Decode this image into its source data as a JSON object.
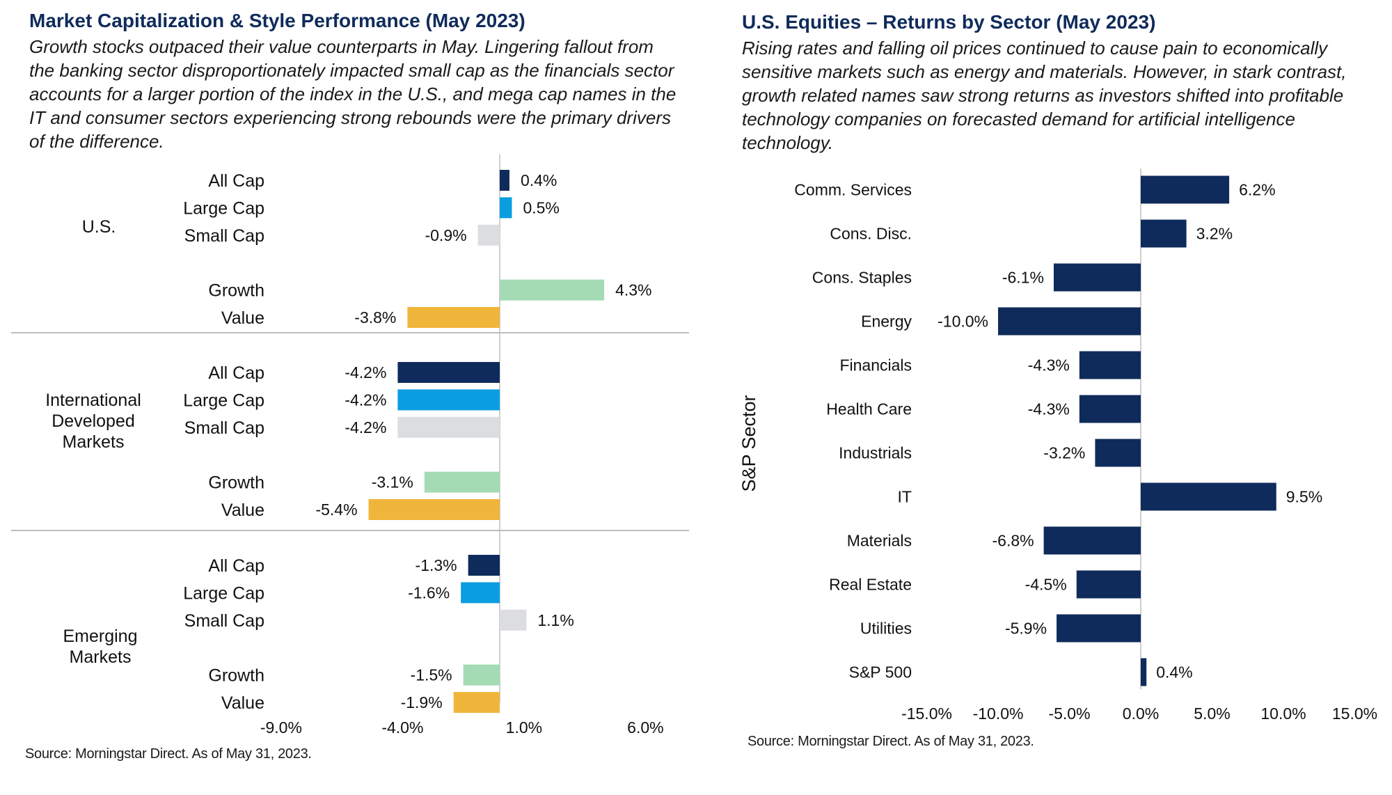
{
  "left": {
    "title": "Market Capitalization & Style Performance (May 2023)",
    "subtitle": "Growth stocks outpaced their value counterparts in May. Lingering fallout from the banking sector disproportionately impacted small cap as the financials sector accounts for a larger portion of the index in the U.S., and mega cap names in the IT and consumer sectors experiencing strong rebounds were the primary drivers of the difference.",
    "source": "Source: Morningstar Direct. As of May 31, 2023."
  },
  "right": {
    "title": "U.S. Equities – Returns by Sector (May 2023)",
    "subtitle": "Rising rates and falling oil prices continued to cause pain to economically sensitive markets such as energy and materials. However, in stark contrast, growth related names saw strong returns as investors shifted into profitable technology companies on forecasted demand for artificial intelligence technology.",
    "source": "Source: Morningstar Direct. As of May 31, 2023."
  },
  "chart_data": [
    {
      "type": "bar",
      "orientation": "horizontal",
      "grouped_by": "region",
      "groups": [
        {
          "name": "U.S.",
          "label_lines": [
            "U.S."
          ],
          "categories": [
            "All Cap",
            "Large Cap",
            "Small Cap",
            "Growth",
            "Value"
          ],
          "values": [
            0.4,
            0.5,
            -0.9,
            4.3,
            -3.8
          ],
          "labels": [
            "0.4%",
            "0.5%",
            "-0.9%",
            "4.3%",
            "-3.8%"
          ]
        },
        {
          "name": "International Developed Markets",
          "label_lines": [
            "International",
            "Developed",
            "Markets"
          ],
          "categories": [
            "All Cap",
            "Large Cap",
            "Small Cap",
            "Growth",
            "Value"
          ],
          "values": [
            -4.2,
            -4.2,
            -4.2,
            -3.1,
            -5.4
          ],
          "labels": [
            "-4.2%",
            "-4.2%",
            "-4.2%",
            "-3.1%",
            "-5.4%"
          ]
        },
        {
          "name": "Emerging Markets",
          "label_lines": [
            "Emerging",
            "Markets"
          ],
          "categories": [
            "All Cap",
            "Large Cap",
            "Small Cap",
            "Growth",
            "Value"
          ],
          "values": [
            -1.3,
            -1.6,
            1.1,
            -1.5,
            -1.9
          ],
          "labels": [
            "-1.3%",
            "-1.6%",
            "1.1%",
            "-1.5%",
            "-1.9%"
          ]
        }
      ],
      "category_colors": {
        "All Cap": "#0f2b5b",
        "Large Cap": "#0a9ee0",
        "Small Cap": "#dcdde0",
        "Growth": "#a4dbb4",
        "Value": "#f0b63b"
      },
      "xticks": [
        "-9.0%",
        "-4.0%",
        "1.0%",
        "6.0%"
      ],
      "xtick_values": [
        -9.0,
        -4.0,
        1.0,
        6.0
      ],
      "xlim": [
        -9.0,
        6.0
      ],
      "grid": false
    },
    {
      "type": "bar",
      "orientation": "horizontal",
      "ylabel": "S&P Sector",
      "categories": [
        "Comm. Services",
        "Cons. Disc.",
        "Cons. Staples",
        "Energy",
        "Financials",
        "Health Care",
        "Industrials",
        "IT",
        "Materials",
        "Real Estate",
        "Utilities",
        "S&P 500"
      ],
      "values": [
        6.2,
        3.2,
        -6.1,
        -10.0,
        -4.3,
        -4.3,
        -3.2,
        9.5,
        -6.8,
        -4.5,
        -5.9,
        0.4
      ],
      "labels": [
        "6.2%",
        "3.2%",
        "-6.1%",
        "-10.0%",
        "-4.3%",
        "-4.3%",
        "-3.2%",
        "9.5%",
        "-6.8%",
        "-4.5%",
        "-5.9%",
        "0.4%"
      ],
      "color": "#0f2b5b",
      "xticks": [
        "-15.0%",
        "-10.0%",
        "-5.0%",
        "0.0%",
        "5.0%",
        "10.0%",
        "15.0%"
      ],
      "xtick_values": [
        -15,
        -10,
        -5,
        0,
        5,
        10,
        15
      ],
      "xlim": [
        -15,
        15
      ],
      "grid": false
    }
  ]
}
